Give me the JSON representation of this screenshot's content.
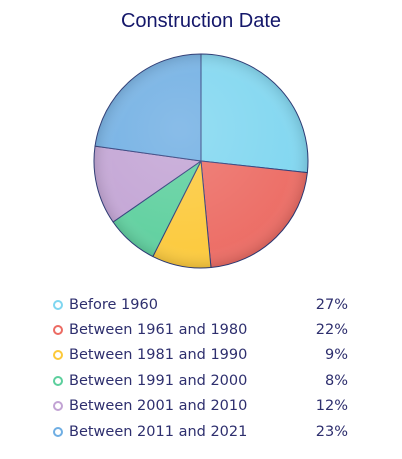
{
  "chart_data": {
    "type": "pie",
    "title": "Construction Date",
    "categories": [
      "Before 1960",
      "Between 1961 and 1980",
      "Between 1981 and 1990",
      "Between 1991 and 2000",
      "Between 2001 and 2010",
      "Between 2011 and 2021"
    ],
    "values": [
      27,
      22,
      9,
      8,
      12,
      23
    ],
    "value_labels": [
      "27%",
      "22%",
      "9%",
      "8%",
      "12%",
      "23%"
    ],
    "colors": [
      "#7fd6f0",
      "#ec6b63",
      "#fcc93a",
      "#5ccf9d",
      "#c2a3d4",
      "#6faee3"
    ],
    "legend": "bottom"
  }
}
